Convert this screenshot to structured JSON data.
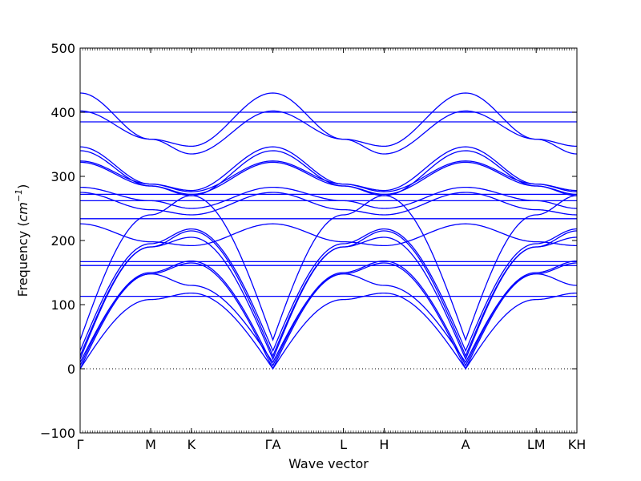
{
  "chart_data": {
    "type": "line",
    "xlabel": "Wave vector",
    "ylabel": "Frequency (cm⁻¹)",
    "ylabel_main": "Frequency (",
    "ylabel_unit_base": "cm",
    "ylabel_unit_exp": "−1",
    "ylabel_close": ")",
    "ylim": [
      -100,
      500
    ],
    "yticks": [
      -100,
      0,
      100,
      200,
      300,
      400,
      500
    ],
    "zero_line": true,
    "line_color": "#0000ff",
    "x_path": [
      {
        "label": "Γ",
        "pos": 0.0
      },
      {
        "label": "M",
        "pos": 1.0
      },
      {
        "label": "K",
        "pos": 1.577
      },
      {
        "label": "ΓA",
        "pos": 2.732
      },
      {
        "label": "L",
        "pos": 3.732
      },
      {
        "label": "H",
        "pos": 4.309
      },
      {
        "label": "A",
        "pos": 5.464
      },
      {
        "label": "LM",
        "pos": 6.464
      },
      {
        "label": "KH",
        "pos": 7.041
      }
    ],
    "xlim": [
      0.0,
      7.041
    ],
    "segments": [
      {
        "from": "Γ",
        "to": "M",
        "shape": "gm"
      },
      {
        "from": "M",
        "to": "K",
        "shape": "mk"
      },
      {
        "from": "K",
        "to": "Γ",
        "shape": "kg"
      },
      {
        "from": "A",
        "to": "L",
        "shape": "gm"
      },
      {
        "from": "L",
        "to": "H",
        "shape": "mk"
      },
      {
        "from": "H",
        "to": "A",
        "shape": "kg"
      },
      {
        "from": "L",
        "to": "M",
        "shape": "flat"
      },
      {
        "from": "K",
        "to": "H",
        "shape": "flat"
      }
    ],
    "series": [
      {
        "values": {
          "G": 0,
          "M": 108,
          "K": 118
        }
      },
      {
        "values": {
          "G": 0,
          "M": 148,
          "K": 165
        }
      },
      {
        "values": {
          "G": 5,
          "M": 150,
          "K": 168
        }
      },
      {
        "values": {
          "G": 10,
          "M": 148,
          "K": 130
        }
      },
      {
        "values": {
          "G": 15,
          "M": 190,
          "K": 205
        }
      },
      {
        "values": {
          "G": 20,
          "M": 190,
          "K": 215
        }
      },
      {
        "values": {
          "G": 28,
          "M": 195,
          "K": 218
        }
      },
      {
        "values": {
          "G": 45,
          "M": 240,
          "K": 270
        }
      },
      {
        "values": {
          "G": 113,
          "M": 113,
          "K": 113
        }
      },
      {
        "values": {
          "G": 161,
          "M": 161,
          "K": 161
        }
      },
      {
        "values": {
          "G": 167,
          "M": 167,
          "K": 167
        }
      },
      {
        "values": {
          "G": 226,
          "M": 198,
          "K": 192
        }
      },
      {
        "values": {
          "G": 234,
          "M": 234,
          "K": 234
        }
      },
      {
        "values": {
          "G": 262,
          "M": 262,
          "K": 262
        }
      },
      {
        "values": {
          "G": 272,
          "M": 272,
          "K": 272
        }
      },
      {
        "values": {
          "G": 275,
          "M": 248,
          "K": 240
        }
      },
      {
        "values": {
          "G": 283,
          "M": 262,
          "K": 250
        }
      },
      {
        "values": {
          "G": 322,
          "M": 285,
          "K": 272
        }
      },
      {
        "values": {
          "G": 324,
          "M": 288,
          "K": 276
        }
      },
      {
        "values": {
          "G": 340,
          "M": 285,
          "K": 270
        }
      },
      {
        "values": {
          "G": 346,
          "M": 288,
          "K": 278
        }
      },
      {
        "values": {
          "G": 385,
          "M": 385,
          "K": 385
        }
      },
      {
        "values": {
          "G": 400,
          "M": 400,
          "K": 400
        }
      },
      {
        "values": {
          "G": 402,
          "M": 358,
          "K": 335
        }
      },
      {
        "values": {
          "G": 430,
          "M": 358,
          "K": 347
        }
      }
    ]
  }
}
